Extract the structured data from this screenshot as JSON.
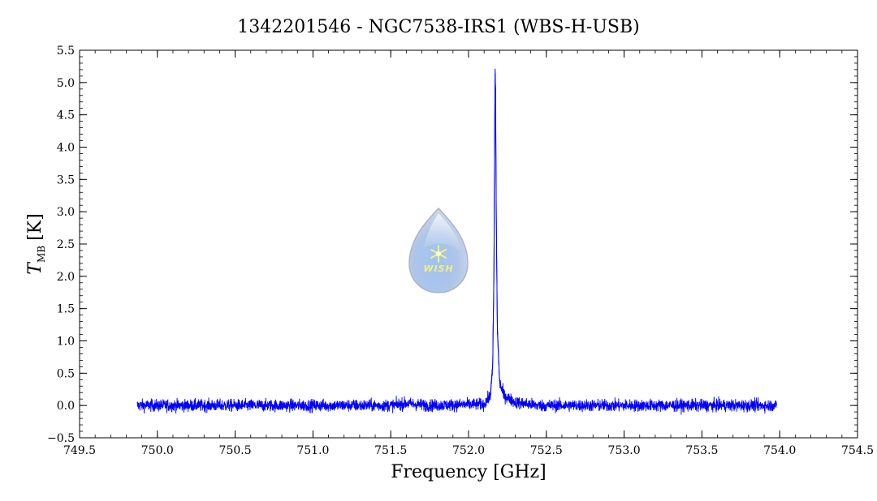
{
  "chart_data": {
    "type": "line",
    "title": "1342201546 - NGC7538-IRS1 (WBS-H-USB)",
    "xlabel": "Frequency [GHz]",
    "ylabel": {
      "symbol": "T",
      "subscript": "MB",
      "unit": "[K]"
    },
    "xlim": [
      749.5,
      754.5
    ],
    "ylim": [
      -0.5,
      5.5
    ],
    "xticks": [
      749.5,
      750.0,
      750.5,
      751.0,
      751.5,
      752.0,
      752.5,
      753.0,
      753.5,
      754.0,
      754.5
    ],
    "yticks": [
      -0.5,
      0.0,
      0.5,
      1.0,
      1.5,
      2.0,
      2.5,
      3.0,
      3.5,
      4.0,
      4.5,
      5.0,
      5.5
    ],
    "xtick_labels": [
      "749.5",
      "750.0",
      "750.5",
      "751.0",
      "751.5",
      "752.0",
      "752.5",
      "753.0",
      "753.5",
      "754.0",
      "754.5"
    ],
    "ytick_labels": [
      "−0.5",
      "0.0",
      "0.5",
      "1.0",
      "1.5",
      "2.0",
      "2.5",
      "3.0",
      "3.5",
      "4.0",
      "4.5",
      "5.0",
      "5.5"
    ],
    "grid": false,
    "series": [
      {
        "color": "#0000ff",
        "x_range": [
          749.87,
          753.98
        ],
        "noise_rms": 0.08,
        "profile": [
          {
            "x": 749.87,
            "y": 0.0
          },
          {
            "x": 751.5,
            "y": 0.0
          },
          {
            "x": 751.6,
            "y": 0.03
          },
          {
            "x": 751.75,
            "y": 0.0
          },
          {
            "x": 752.1,
            "y": 0.02
          },
          {
            "x": 752.14,
            "y": 0.15
          },
          {
            "x": 752.155,
            "y": 0.6
          },
          {
            "x": 752.163,
            "y": 2.0
          },
          {
            "x": 752.168,
            "y": 4.2
          },
          {
            "x": 752.171,
            "y": 5.2
          },
          {
            "x": 752.174,
            "y": 4.8
          },
          {
            "x": 752.178,
            "y": 3.0
          },
          {
            "x": 752.185,
            "y": 1.2
          },
          {
            "x": 752.2,
            "y": 0.35
          },
          {
            "x": 752.23,
            "y": 0.15
          },
          {
            "x": 752.3,
            "y": 0.05
          },
          {
            "x": 752.45,
            "y": 0.0
          },
          {
            "x": 753.98,
            "y": 0.0
          }
        ]
      }
    ]
  },
  "watermark": {
    "text": "WISH"
  }
}
